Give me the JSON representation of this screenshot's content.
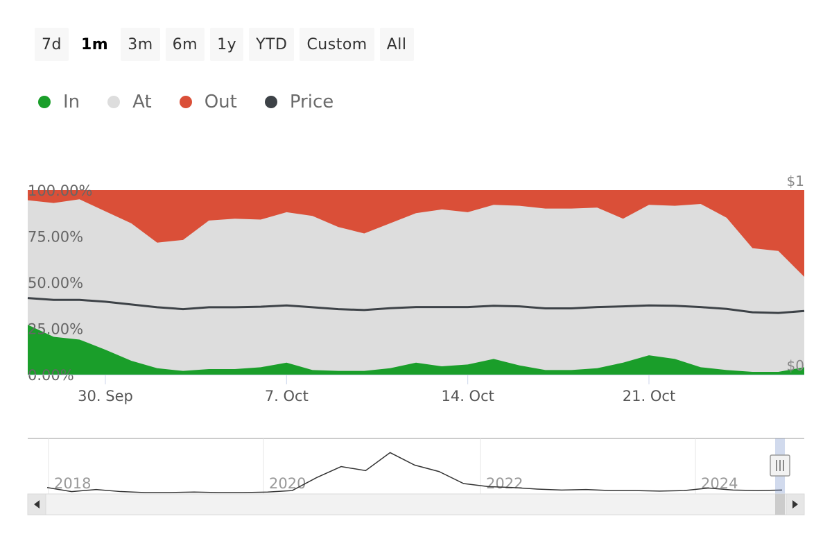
{
  "range_selector": {
    "buttons": [
      {
        "label": "7d",
        "active": false
      },
      {
        "label": "1m",
        "active": true
      },
      {
        "label": "3m",
        "active": false
      },
      {
        "label": "6m",
        "active": false
      },
      {
        "label": "1y",
        "active": false
      },
      {
        "label": "YTD",
        "active": false
      },
      {
        "label": "Custom",
        "active": false
      },
      {
        "label": "All",
        "active": false
      }
    ]
  },
  "legend": [
    {
      "label": "In",
      "color": "#1a9e2a"
    },
    {
      "label": "At",
      "color": "#dddddd"
    },
    {
      "label": "Out",
      "color": "#da4f38"
    },
    {
      "label": "Price",
      "color": "#3d4247"
    }
  ],
  "chart_data": {
    "type": "area",
    "stacking": "percent",
    "x_ticks": [
      "30. Sep",
      "7. Oct",
      "14. Oct",
      "21. Oct"
    ],
    "y_ticks": [
      "0.00%",
      "25.00%",
      "50.00%",
      "75.00%",
      "100.00%"
    ],
    "y_right_ticks": [
      "$0",
      "$1"
    ],
    "ylim": [
      0,
      100
    ],
    "series": [
      {
        "name": "In",
        "color": "#1a9e2a",
        "values": [
          27,
          20.5,
          19,
          13.5,
          7.5,
          3.5,
          2,
          3,
          3,
          4,
          6.5,
          2.5,
          2,
          2,
          3.5,
          6.5,
          4.5,
          5.5,
          8.5,
          5,
          2.5,
          2.5,
          3.5,
          6.5,
          10.5,
          8.5,
          4,
          2.5,
          1.5,
          1.5,
          4
        ]
      },
      {
        "name": "Out",
        "color": "#da4f38",
        "values": [
          5.5,
          7,
          5,
          11.5,
          18,
          28.5,
          27,
          16.5,
          15.5,
          16,
          12,
          14,
          20,
          23.5,
          18,
          12.5,
          10.5,
          12,
          8,
          8.5,
          10,
          10,
          9.5,
          15.5,
          8,
          8.5,
          7.5,
          15,
          31.5,
          33,
          47
        ]
      },
      {
        "name": "Price",
        "color": "#3d4247",
        "values": [
          41.5,
          40.5,
          40.5,
          39.5,
          38,
          36.5,
          35.5,
          36.5,
          36.5,
          36.8,
          37.5,
          36.5,
          35.5,
          35,
          36,
          36.6,
          36.6,
          36.6,
          37.3,
          37,
          35.9,
          35.9,
          36.6,
          37,
          37.5,
          37.3,
          36.6,
          35.6,
          33.8,
          33.4,
          34.5
        ]
      }
    ]
  },
  "navigator": {
    "year_labels": [
      "2018",
      "2020",
      "2022",
      "2024"
    ],
    "price_series": [
      0.1,
      0.02,
      0.06,
      0.02,
      0.0,
      0.0,
      0.01,
      0.0,
      0.0,
      0.01,
      0.04,
      0.3,
      0.52,
      0.44,
      0.8,
      0.55,
      0.42,
      0.18,
      0.12,
      0.1,
      0.07,
      0.05,
      0.06,
      0.04,
      0.04,
      0.03,
      0.04,
      0.09,
      0.05,
      0.04,
      0.05
    ]
  }
}
